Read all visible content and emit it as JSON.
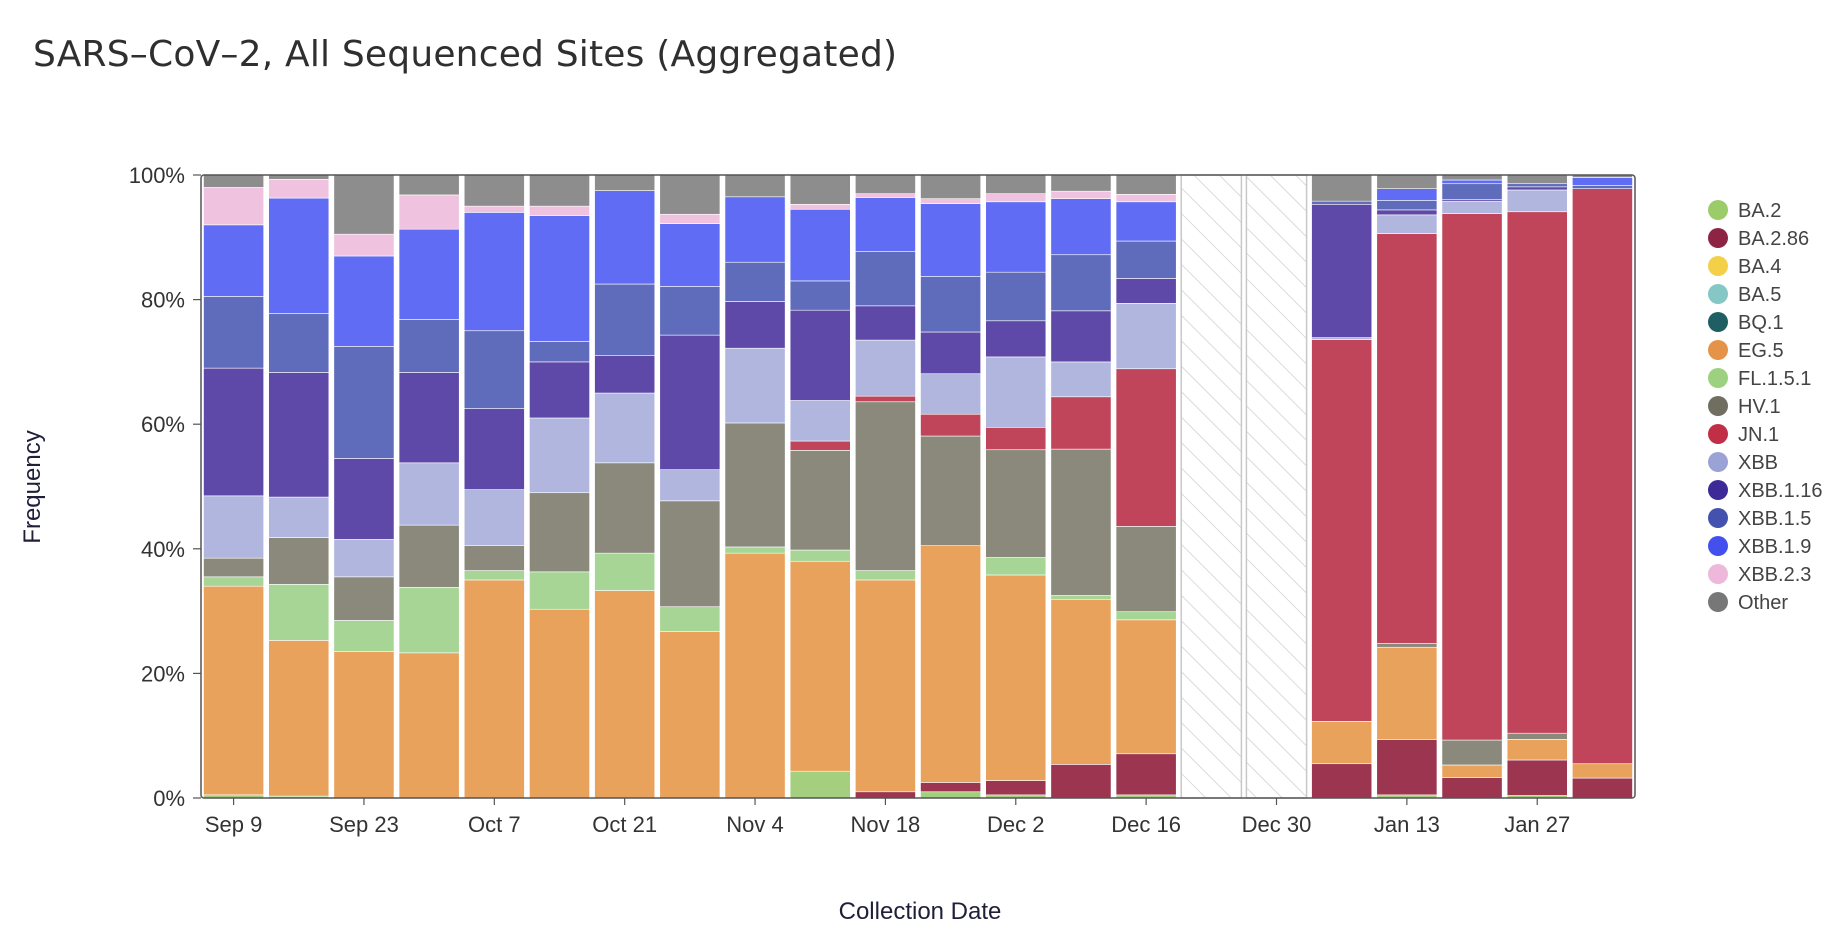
{
  "chart_data": {
    "type": "bar",
    "stacked": true,
    "title": "SARS–CoV–2, All Sequenced Sites (Aggregated)",
    "xlabel": "Collection Date",
    "ylabel": "Frequency",
    "ylim": [
      0,
      100
    ],
    "y_ticks": [
      "0%",
      "20%",
      "40%",
      "60%",
      "80%",
      "100%"
    ],
    "x_ticks": [
      "Sep 9",
      "Sep 23",
      "Oct 7",
      "Oct 21",
      "Nov 4",
      "Nov 18",
      "Dec 2",
      "Dec 16",
      "Dec 30",
      "Jan 13",
      "Jan 27"
    ],
    "x_tick_positions": [
      0,
      2,
      4,
      6,
      8,
      10,
      12,
      14,
      16,
      18,
      20
    ],
    "no_data_periods": [
      16,
      17
    ],
    "categories": [
      "1",
      "2",
      "3",
      "4",
      "5",
      "6",
      "7",
      "8",
      "9",
      "10",
      "11",
      "12",
      "13",
      "14",
      "15",
      "16",
      "17",
      "18",
      "19",
      "20",
      "21",
      "22"
    ],
    "series": [
      {
        "name": "BA.2",
        "color": "#a3cf7f"
      },
      {
        "name": "BA.2.86",
        "color": "#9b3550"
      },
      {
        "name": "BA.4",
        "color": "#f5d46b"
      },
      {
        "name": "BA.5",
        "color": "#8ccec8"
      },
      {
        "name": "BQ.1",
        "color": "#2e6b6b"
      },
      {
        "name": "EG.5",
        "color": "#e8a25c"
      },
      {
        "name": "FL.1.5.1",
        "color": "#a6d595"
      },
      {
        "name": "HV.1",
        "color": "#8a897b"
      },
      {
        "name": "JN.1",
        "color": "#c0455a"
      },
      {
        "name": "XBB",
        "color": "#b0b6de"
      },
      {
        "name": "XBB.1.16",
        "color": "#5e48a8"
      },
      {
        "name": "XBB.1.5",
        "color": "#5f6bbb"
      },
      {
        "name": "XBB.1.9",
        "color": "#5f6cf3"
      },
      {
        "name": "XBB.2.3",
        "color": "#efc3e0"
      },
      {
        "name": "Other",
        "color": "#8d8d8d"
      }
    ],
    "legend_colors": {
      "BA.2": "#9ccc6a",
      "BA.2.86": "#8e2444",
      "BA.4": "#f3d048",
      "BA.5": "#84c7c4",
      "BQ.1": "#1f5f63",
      "EG.5": "#e6934a",
      "FL.1.5.1": "#9bd17f",
      "HV.1": "#6f6e60",
      "JN.1": "#c02f45",
      "XBB": "#9ba3d6",
      "XBB.1.16": "#3d2a98",
      "XBB.1.5": "#4252ae",
      "XBB.1.9": "#4450ee",
      "XBB.2.3": "#edb8da",
      "Other": "#777777"
    },
    "weeks": [
      {
        "BA.2": 0.5,
        "EG.5": 33.5,
        "FL.1.5.1": 1.5,
        "HV.1": 3,
        "XBB": 10,
        "XBB.1.16": 20.5,
        "XBB.1.5": 11.5,
        "XBB.1.9": 11.5,
        "XBB.2.3": 6,
        "Other": 2
      },
      {
        "BA.2": 0.3,
        "EG.5": 25,
        "FL.1.5.1": 9,
        "HV.1": 7.5,
        "XBB": 6.5,
        "XBB.1.16": 20,
        "XBB.1.5": 9.5,
        "XBB.1.9": 18.5,
        "XBB.2.3": 3,
        "Other": 0.7
      },
      {
        "EG.5": 23.5,
        "FL.1.5.1": 5,
        "HV.1": 7,
        "XBB": 6,
        "XBB.1.16": 13,
        "XBB.1.5": 18,
        "XBB.1.9": 14.5,
        "XBB.2.3": 3.5,
        "Other": 9.5
      },
      {
        "EG.5": 23.3,
        "FL.1.5.1": 10.5,
        "HV.1": 10,
        "XBB": 10,
        "XBB.1.16": 14.5,
        "XBB.1.5": 8.5,
        "XBB.1.9": 14.5,
        "XBB.2.3": 5.5,
        "Other": 3.2
      },
      {
        "EG.5": 35,
        "FL.1.5.1": 1.5,
        "HV.1": 4,
        "XBB": 9,
        "XBB.1.16": 13,
        "XBB.1.5": 12.5,
        "XBB.1.9": 19,
        "XBB.2.3": 1,
        "Other": 5
      },
      {
        "EG.5": 30.3,
        "FL.1.5.1": 6,
        "HV.1": 12.7,
        "XBB": 12,
        "XBB.1.16": 9,
        "XBB.1.5": 3.3,
        "XBB.1.9": 20.2,
        "XBB.2.3": 1.5,
        "Other": 5
      },
      {
        "EG.5": 33.3,
        "FL.1.5.1": 6,
        "HV.1": 14.5,
        "XBB": 11.2,
        "XBB.1.16": 6,
        "XBB.1.5": 11.5,
        "XBB.1.9": 15,
        "Other": 2.5
      },
      {
        "EG.5": 26.7,
        "FL.1.5.1": 4,
        "HV.1": 17,
        "XBB": 5,
        "XBB.1.16": 21.6,
        "XBB.1.5": 7.8,
        "XBB.1.9": 10.1,
        "XBB.2.3": 1.5,
        "Other": 6.3
      },
      {
        "EG.5": 39.3,
        "FL.1.5.1": 1,
        "HV.1": 19.9,
        "XBB": 12,
        "XBB.1.16": 7.5,
        "XBB.1.5": 6.3,
        "XBB.1.9": 10.5,
        "Other": 3.5
      },
      {
        "BA.2": 4.3,
        "EG.5": 33.7,
        "FL.1.5.1": 1.8,
        "HV.1": 16,
        "JN.1": 1.5,
        "XBB": 6.5,
        "XBB.1.16": 14.5,
        "XBB.1.5": 4.7,
        "XBB.1.9": 11.5,
        "XBB.2.3": 0.8,
        "Other": 4.7
      },
      {
        "BA.2.86": 1,
        "EG.5": 34,
        "FL.1.5.1": 1.5,
        "HV.1": 27.1,
        "JN.1": 0.9,
        "XBB": 9,
        "XBB.1.16": 5.5,
        "XBB.1.5": 8.7,
        "XBB.1.9": 8.7,
        "XBB.2.3": 0.6,
        "Other": 3
      },
      {
        "BA.2": 1,
        "BA.2.86": 1.5,
        "EG.5": 38,
        "HV.1": 17.6,
        "JN.1": 3.5,
        "XBB": 6.5,
        "XBB.1.16": 6.7,
        "XBB.1.5": 8.9,
        "XBB.1.9": 11.7,
        "XBB.2.3": 0.8,
        "Other": 3.8
      },
      {
        "BA.2": 0.5,
        "BA.2.86": 2.3,
        "EG.5": 33,
        "FL.1.5.1": 2.8,
        "HV.1": 17.3,
        "JN.1": 3.6,
        "XBB": 11.3,
        "XBB.1.16": 5.8,
        "XBB.1.5": 7.8,
        "XBB.1.9": 11.3,
        "XBB.2.3": 1.3,
        "Other": 3
      },
      {
        "BA.2.86": 5.4,
        "EG.5": 26.5,
        "FL.1.5.1": 0.6,
        "HV.1": 23.5,
        "JN.1": 8.4,
        "XBB": 5.6,
        "XBB.1.16": 8.2,
        "XBB.1.5": 9,
        "XBB.1.9": 9,
        "XBB.2.3": 1.2,
        "Other": 2.6
      },
      {
        "BA.2": 0.5,
        "BA.2.86": 6.6,
        "EG.5": 21.5,
        "FL.1.5.1": 1.3,
        "HV.1": 13.7,
        "JN.1": 25.3,
        "XBB": 10.5,
        "XBB.1.16": 4,
        "XBB.1.5": 6,
        "XBB.1.9": 6.3,
        "XBB.2.3": 1.2,
        "Other": 3.1
      },
      null,
      null,
      {
        "BA.2.86": 5.5,
        "EG.5": 6.8,
        "JN.1": 61.3,
        "XBB": 0.3,
        "XBB.1.16": 21.4,
        "XBB.1.5": 0.5,
        "Other": 4.2
      },
      {
        "BA.2": 0.5,
        "BA.2.86": 8.9,
        "EG.5": 14.8,
        "HV.1": 0.6,
        "JN.1": 65.8,
        "XBB": 3,
        "XBB.1.16": 0.8,
        "XBB.1.5": 1.5,
        "XBB.1.9": 1.9,
        "Other": 2.2
      },
      {
        "BA.2.86": 3.3,
        "EG.5": 2,
        "HV.1": 4,
        "JN.1": 84.5,
        "XBB": 2,
        "XBB.1.16": 0.3,
        "XBB.1.5": 2.5,
        "XBB.1.9": 0.6,
        "Other": 0.8
      },
      {
        "BA.2": 0.4,
        "BA.2.86": 5.7,
        "EG.5": 3.3,
        "HV.1": 1,
        "JN.1": 83.7,
        "XBB": 3.5,
        "XBB.1.16": 0.5,
        "XBB.1.5": 0.5,
        "Other": 1.4
      },
      {
        "BA.2.86": 3.2,
        "EG.5": 2.3,
        "JN.1": 92.3,
        "XBB.1.5": 0.5,
        "XBB.1.9": 1.3,
        "Other": 0.4
      }
    ]
  }
}
